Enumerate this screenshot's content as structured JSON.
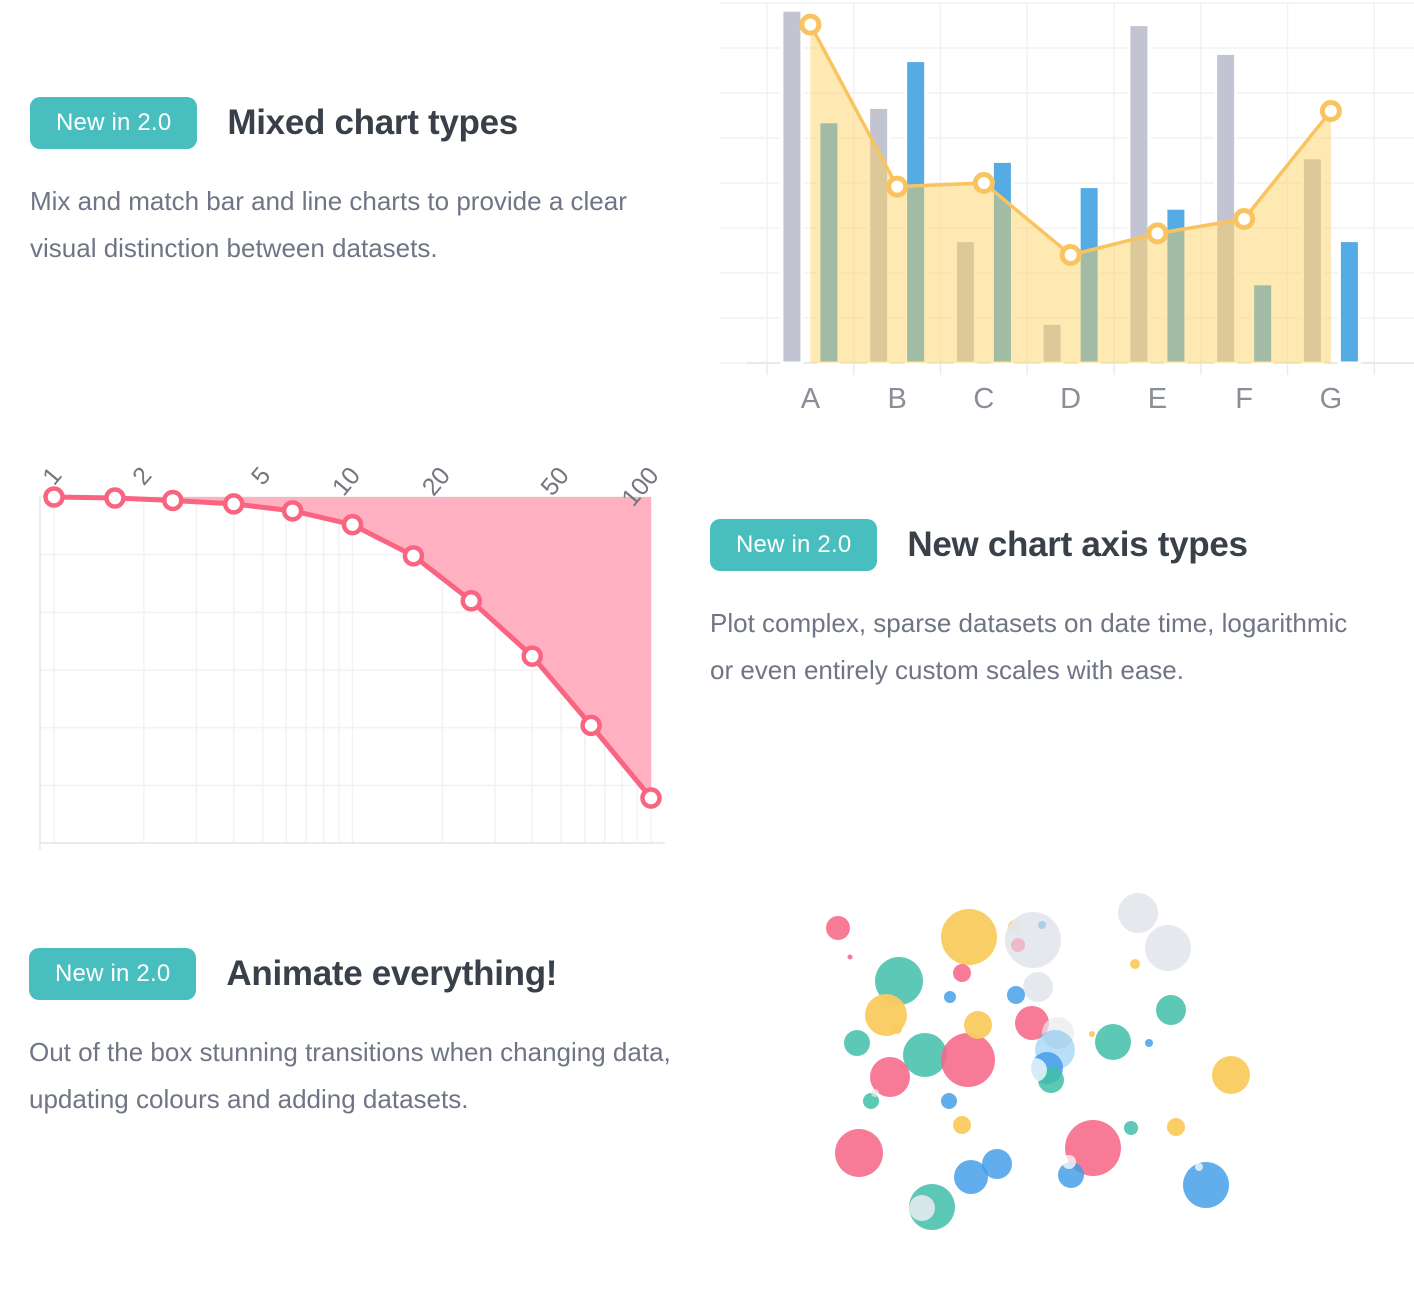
{
  "page": {
    "background": "#FFFFFF"
  },
  "colors": {
    "badge_bg": "#48BFBE",
    "badge_text": "#FFFFFF",
    "heading": "#3A4049",
    "body_text": "#6F7585",
    "grid": "#F2F2F4",
    "axis_line": "#E9E9EC",
    "axis_label": "#8A8E96"
  },
  "sections": [
    {
      "badge": "New in 2.0",
      "title": "Mixed chart types",
      "body": "Mix and match bar and line charts to provide a clear visual distinction between datasets."
    },
    {
      "badge": "New in 2.0",
      "title": "New chart axis types",
      "body": "Plot complex, sparse datasets on date time, logarithmic or even entirely custom scales with ease."
    },
    {
      "badge": "New in 2.0",
      "title": "Animate everything!",
      "body": "Out of the box stunning transitions when changing data, updating colours and adding datasets."
    }
  ],
  "chart_data": [
    {
      "type": "bar",
      "name": "mixed-bar-line-chart",
      "title": "",
      "categories": [
        "A",
        "B",
        "C",
        "D",
        "E",
        "F",
        "G"
      ],
      "series": [
        {
          "name": "grey bar dataset",
          "type": "bar",
          "color": "#C2C4D2",
          "values": [
            98,
            71,
            34,
            11,
            94,
            86,
            57
          ]
        },
        {
          "name": "blue bar dataset",
          "type": "bar",
          "color": "#55ACE4",
          "values": [
            67,
            84,
            56,
            49,
            43,
            22,
            34
          ]
        },
        {
          "name": "yellow line dataset",
          "type": "line",
          "color": "#F9C45F",
          "fill": "rgba(255,206,86,0.45)",
          "values": [
            94,
            49,
            50,
            30,
            36,
            40,
            70
          ]
        }
      ],
      "ylim": [
        0,
        100
      ],
      "grid": true,
      "legend": "none",
      "bar_border_color": "#FFFFFF"
    },
    {
      "type": "line",
      "name": "logarithmic-scale-chart",
      "title": "",
      "x_scale": "log",
      "x_ticks": [
        "1",
        "2",
        "5",
        "10",
        "20",
        "50",
        "100"
      ],
      "x": [
        1,
        1.6,
        2.5,
        4,
        6.3,
        10,
        16,
        25,
        40,
        63,
        100
      ],
      "values": [
        100,
        99.7,
        99,
        98,
        96,
        92,
        83,
        70,
        54,
        34,
        13
      ],
      "ylim": [
        0,
        100
      ],
      "xlim": [
        1,
        100
      ],
      "color": "#F96480",
      "fill": "#FFB1C1",
      "fill_origin": "top",
      "point_style": "circle-white-center",
      "grid": true,
      "legend": "none"
    },
    {
      "type": "scatter",
      "name": "bubble-chart",
      "title": "",
      "grid": false,
      "legend": "none",
      "palette": {
        "pink": "rgba(246,104,137,0.88)",
        "pinklight": "rgba(255,99,132,0.35)",
        "blue": "rgba(64,155,231,0.82)",
        "lightblue": "rgba(54,162,235,0.35)",
        "yellow": "rgba(250,203,95,0.95)",
        "teal": "rgba(64,190,168,0.85)",
        "gray": "rgba(228,231,236,0.95)",
        "graylight": "rgba(231,233,237,0.70)",
        "white": "rgba(255,255,255,0.75)",
        "whitegray": "rgba(223,233,236,0.92)"
      },
      "points": [
        {
          "x": 38,
          "y": 68,
          "r": 12,
          "c": "pink"
        },
        {
          "x": 50,
          "y": 97,
          "r": 2.5,
          "c": "pink"
        },
        {
          "x": 99,
          "y": 121,
          "r": 24,
          "c": "teal"
        },
        {
          "x": 169,
          "y": 77,
          "r": 28,
          "c": "yellow"
        },
        {
          "x": 162,
          "y": 113,
          "r": 9,
          "c": "pink"
        },
        {
          "x": 215,
          "y": 67,
          "r": 7,
          "c": "yellow"
        },
        {
          "x": 233,
          "y": 80,
          "r": 28,
          "c": "gray"
        },
        {
          "x": 218,
          "y": 85,
          "r": 7,
          "c": "pinklight"
        },
        {
          "x": 242,
          "y": 65,
          "r": 4,
          "c": "lightblue"
        },
        {
          "x": 338,
          "y": 53,
          "r": 20,
          "c": "gray"
        },
        {
          "x": 368,
          "y": 88,
          "r": 23,
          "c": "gray"
        },
        {
          "x": 335,
          "y": 104,
          "r": 5,
          "c": "yellow"
        },
        {
          "x": 150,
          "y": 137,
          "r": 6,
          "c": "blue"
        },
        {
          "x": 86,
          "y": 155,
          "r": 21,
          "c": "yellow"
        },
        {
          "x": 238,
          "y": 127,
          "r": 15,
          "c": "gray"
        },
        {
          "x": 216,
          "y": 135,
          "r": 9,
          "c": "blue"
        },
        {
          "x": 232,
          "y": 163,
          "r": 17,
          "c": "pink"
        },
        {
          "x": 258,
          "y": 173,
          "r": 16,
          "c": "graylight"
        },
        {
          "x": 371,
          "y": 150,
          "r": 15,
          "c": "teal"
        },
        {
          "x": 313,
          "y": 182,
          "r": 18,
          "c": "teal"
        },
        {
          "x": 292,
          "y": 174,
          "r": 3,
          "c": "yellow"
        },
        {
          "x": 349,
          "y": 183,
          "r": 4,
          "c": "blue"
        },
        {
          "x": 57,
          "y": 183,
          "r": 13,
          "c": "teal"
        },
        {
          "x": 97,
          "y": 169,
          "r": 5,
          "c": "yellow"
        },
        {
          "x": 125,
          "y": 195,
          "r": 22,
          "c": "teal"
        },
        {
          "x": 168,
          "y": 200,
          "r": 27,
          "c": "pink"
        },
        {
          "x": 178,
          "y": 165,
          "r": 14,
          "c": "yellow"
        },
        {
          "x": 90,
          "y": 217,
          "r": 20,
          "c": "pink"
        },
        {
          "x": 255,
          "y": 190,
          "r": 20,
          "c": "lightblue"
        },
        {
          "x": 247,
          "y": 208,
          "r": 16,
          "c": "blue"
        },
        {
          "x": 251,
          "y": 220,
          "r": 13,
          "c": "teal"
        },
        {
          "x": 235,
          "y": 210,
          "r": 12,
          "c": "white"
        },
        {
          "x": 431,
          "y": 215,
          "r": 19,
          "c": "yellow"
        },
        {
          "x": 71,
          "y": 241,
          "r": 8,
          "c": "teal"
        },
        {
          "x": 75,
          "y": 233,
          "r": 4,
          "c": "graylight"
        },
        {
          "x": 149,
          "y": 241,
          "r": 8,
          "c": "blue"
        },
        {
          "x": 162,
          "y": 265,
          "r": 9,
          "c": "yellow"
        },
        {
          "x": 59,
          "y": 293,
          "r": 24,
          "c": "pink"
        },
        {
          "x": 293,
          "y": 288,
          "r": 28,
          "c": "pink"
        },
        {
          "x": 331,
          "y": 268,
          "r": 7,
          "c": "teal"
        },
        {
          "x": 376,
          "y": 267,
          "r": 9,
          "c": "yellow"
        },
        {
          "x": 197,
          "y": 304,
          "r": 15,
          "c": "blue"
        },
        {
          "x": 171,
          "y": 317,
          "r": 17,
          "c": "blue"
        },
        {
          "x": 132,
          "y": 347,
          "r": 23,
          "c": "teal"
        },
        {
          "x": 122,
          "y": 348,
          "r": 13,
          "c": "whitegray"
        },
        {
          "x": 271,
          "y": 315,
          "r": 13,
          "c": "blue"
        },
        {
          "x": 269,
          "y": 302,
          "r": 7,
          "c": "white"
        },
        {
          "x": 406,
          "y": 325,
          "r": 23,
          "c": "blue"
        },
        {
          "x": 399,
          "y": 307,
          "r": 4,
          "c": "white"
        }
      ]
    }
  ]
}
